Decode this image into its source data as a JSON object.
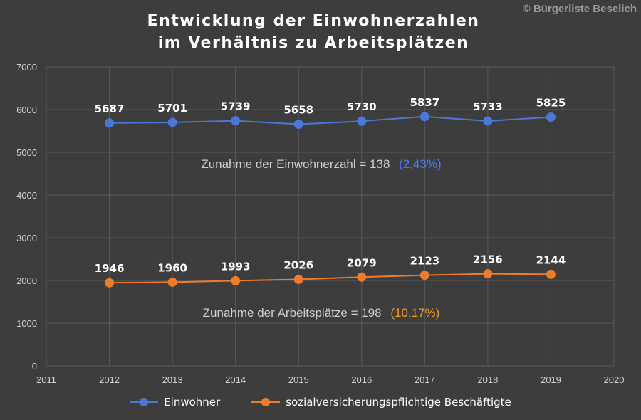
{
  "title_line1": "Entwicklung der Einwohnerzahlen",
  "title_line2": "im Verhältnis zu Arbeitsplätzen",
  "copyright": "© Bürgerliste Beselich",
  "colors": {
    "background": "#3d3d3d",
    "einwohner": "#4a78d6",
    "beschaeftigte": "#ee7d2b",
    "einwohner_pct": "#4a7dff",
    "beschaeftigte_pct": "#f39a1e",
    "grid": "#5a5a5a",
    "text": "#ffffff",
    "axis_text": "#d0d0d0"
  },
  "chart_data": {
    "type": "line",
    "title": "Entwicklung der Einwohnerzahlen im Verhältnis zu Arbeitsplätzen",
    "xlabel": "",
    "ylabel": "",
    "xlim": [
      2011,
      2020
    ],
    "ylim": [
      0,
      7000
    ],
    "x_ticks": [
      "2011",
      "2012",
      "2013",
      "2014",
      "2015",
      "2016",
      "2017",
      "2018",
      "2019",
      "2020"
    ],
    "y_ticks": [
      "0",
      "1000",
      "2000",
      "3000",
      "4000",
      "5000",
      "6000",
      "7000"
    ],
    "x": [
      2012,
      2013,
      2014,
      2015,
      2016,
      2017,
      2018,
      2019
    ],
    "grid": true,
    "legend_position": "bottom",
    "series": [
      {
        "name": "Einwohner",
        "values": [
          5687,
          5701,
          5739,
          5658,
          5730,
          5837,
          5733,
          5825
        ],
        "labels": [
          "5687",
          "5701",
          "5739",
          "5658",
          "5730",
          "5837",
          "5733",
          "5825"
        ]
      },
      {
        "name": "sozialversicherungspflichtige Beschäftigte",
        "values": [
          1946,
          1960,
          1993,
          2026,
          2079,
          2123,
          2156,
          2144
        ],
        "labels": [
          "1946",
          "1960",
          "1993",
          "2026",
          "2079",
          "2123",
          "2156",
          "2144"
        ]
      }
    ],
    "annotations": {
      "einwohner_text": "Zunahme der Einwohnerzahl = 138",
      "einwohner_pct": "(2,43%)",
      "arbeitsplaetze_text": "Zunahme der Arbeitsplätze = 198",
      "arbeitsplaetze_pct": "(10,17%)"
    }
  }
}
